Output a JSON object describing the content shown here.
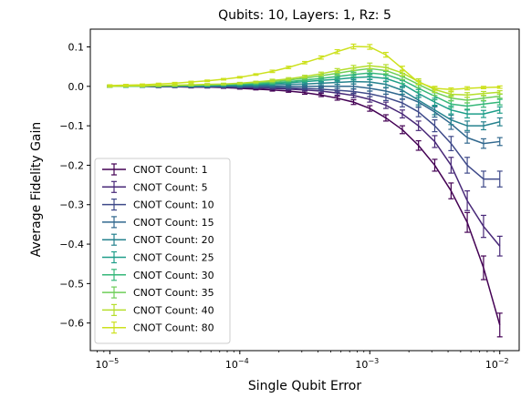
{
  "chart_data": {
    "type": "line",
    "title": "Qubits: 10, Layers: 1, Rz: 5",
    "xlabel": "Single Qubit Error",
    "ylabel": "Average Fidelity Gain",
    "xscale": "log",
    "xlim": [
      7.08e-06,
      0.0141
    ],
    "ylim": [
      -0.67,
      0.145
    ],
    "xticks": [
      {
        "value": 1e-05,
        "base": "10",
        "exp": "−5"
      },
      {
        "value": 0.0001,
        "base": "10",
        "exp": "−4"
      },
      {
        "value": 0.001,
        "base": "10",
        "exp": "−3"
      },
      {
        "value": 0.01,
        "base": "10",
        "exp": "−2"
      }
    ],
    "yticks": [
      {
        "value": 0.1,
        "label": "0.1"
      },
      {
        "value": 0.0,
        "label": "0.0"
      },
      {
        "value": -0.1,
        "label": "−0.1"
      },
      {
        "value": -0.2,
        "label": "−0.2"
      },
      {
        "value": -0.3,
        "label": "−0.3"
      },
      {
        "value": -0.4,
        "label": "−0.4"
      },
      {
        "value": -0.5,
        "label": "−0.5"
      },
      {
        "value": -0.6,
        "label": "−0.6"
      }
    ],
    "grid": false,
    "legend_position": "lower-left",
    "x": [
      1e-05,
      1.33e-05,
      1.78e-05,
      2.37e-05,
      3.16e-05,
      4.22e-05,
      5.62e-05,
      7.5e-05,
      0.0001,
      0.000133,
      0.000178,
      0.000237,
      0.000316,
      0.000422,
      0.000562,
      0.00075,
      0.001,
      0.00133,
      0.00178,
      0.00237,
      0.00316,
      0.00422,
      0.00562,
      0.0075,
      0.01
    ],
    "series": [
      {
        "name": "CNOT Count: 1",
        "color": "#440154",
        "values": [
          0,
          0,
          0,
          -0.001,
          -0.001,
          -0.002,
          -0.002,
          -0.003,
          -0.005,
          -0.007,
          -0.009,
          -0.012,
          -0.016,
          -0.022,
          -0.03,
          -0.04,
          -0.056,
          -0.08,
          -0.11,
          -0.15,
          -0.2,
          -0.265,
          -0.345,
          -0.46,
          -0.605
        ],
        "errors": [
          0.002,
          0.002,
          0.002,
          0.002,
          0.002,
          0.002,
          0.002,
          0.002,
          0.002,
          0.002,
          0.003,
          0.003,
          0.004,
          0.004,
          0.005,
          0.006,
          0.007,
          0.008,
          0.01,
          0.012,
          0.015,
          0.02,
          0.025,
          0.03,
          0.03
        ]
      },
      {
        "name": "CNOT Count: 5",
        "color": "#482878",
        "values": [
          0,
          0,
          0,
          -0.001,
          -0.001,
          -0.001,
          -0.002,
          -0.002,
          -0.003,
          -0.004,
          -0.005,
          -0.007,
          -0.009,
          -0.012,
          -0.017,
          -0.023,
          -0.033,
          -0.048,
          -0.07,
          -0.1,
          -0.14,
          -0.2,
          -0.29,
          -0.355,
          -0.405
        ],
        "errors": [
          0.002,
          0.002,
          0.002,
          0.002,
          0.002,
          0.002,
          0.002,
          0.002,
          0.002,
          0.002,
          0.003,
          0.003,
          0.003,
          0.004,
          0.005,
          0.006,
          0.007,
          0.008,
          0.01,
          0.012,
          0.015,
          0.02,
          0.025,
          0.028,
          0.025
        ]
      },
      {
        "name": "CNOT Count: 10",
        "color": "#3e4989",
        "values": [
          0,
          0,
          0,
          0,
          0,
          -0.001,
          -0.001,
          -0.001,
          -0.002,
          -0.002,
          -0.003,
          -0.004,
          -0.005,
          -0.007,
          -0.01,
          -0.013,
          -0.019,
          -0.028,
          -0.042,
          -0.065,
          -0.1,
          -0.145,
          -0.2,
          -0.235,
          -0.235
        ],
        "errors": [
          0.002,
          0.002,
          0.002,
          0.002,
          0.002,
          0.002,
          0.002,
          0.002,
          0.002,
          0.002,
          0.002,
          0.003,
          0.003,
          0.004,
          0.005,
          0.006,
          0.007,
          0.008,
          0.01,
          0.012,
          0.015,
          0.018,
          0.02,
          0.02,
          0.02
        ]
      },
      {
        "name": "CNOT Count: 15",
        "color": "#31688e",
        "values": [
          0,
          0,
          0,
          0,
          0,
          0,
          0,
          0,
          0,
          0,
          0,
          0,
          0,
          0,
          0,
          0,
          -0.005,
          -0.012,
          -0.023,
          -0.04,
          -0.065,
          -0.095,
          -0.13,
          -0.145,
          -0.14
        ],
        "errors": [
          0.002,
          0.002,
          0.002,
          0.002,
          0.002,
          0.002,
          0.002,
          0.002,
          0.002,
          0.002,
          0.002,
          0.003,
          0.003,
          0.004,
          0.005,
          0.006,
          0.007,
          0.008,
          0.01,
          0.012,
          0.013,
          0.014,
          0.014,
          0.012,
          0.01
        ]
      },
      {
        "name": "CNOT Count: 20",
        "color": "#26828e",
        "values": [
          0,
          0,
          0,
          0,
          0.001,
          0.001,
          0.001,
          0.002,
          0.002,
          0.003,
          0.004,
          0.005,
          0.006,
          0.008,
          0.01,
          0.012,
          0.011,
          0.005,
          -0.01,
          -0.035,
          -0.06,
          -0.085,
          -0.1,
          -0.1,
          -0.09
        ],
        "errors": [
          0.002,
          0.002,
          0.002,
          0.002,
          0.002,
          0.002,
          0.002,
          0.002,
          0.002,
          0.002,
          0.002,
          0.003,
          0.003,
          0.004,
          0.005,
          0.006,
          0.007,
          0.008,
          0.01,
          0.012,
          0.012,
          0.012,
          0.012,
          0.01,
          0.01
        ]
      },
      {
        "name": "CNOT Count: 25",
        "color": "#1f9e89",
        "values": [
          0,
          0,
          0,
          0.001,
          0.001,
          0.002,
          0.002,
          0.003,
          0.004,
          0.005,
          0.007,
          0.009,
          0.012,
          0.015,
          0.018,
          0.022,
          0.024,
          0.02,
          0.006,
          -0.018,
          -0.04,
          -0.06,
          -0.07,
          -0.07,
          -0.06
        ],
        "errors": [
          0.002,
          0.002,
          0.002,
          0.002,
          0.002,
          0.002,
          0.002,
          0.002,
          0.002,
          0.002,
          0.003,
          0.003,
          0.003,
          0.004,
          0.005,
          0.006,
          0.007,
          0.008,
          0.009,
          0.01,
          0.01,
          0.01,
          0.01,
          0.009,
          0.008
        ]
      },
      {
        "name": "CNOT Count: 30",
        "color": "#35b779",
        "values": [
          0,
          0,
          0.001,
          0.001,
          0.002,
          0.002,
          0.003,
          0.004,
          0.005,
          0.007,
          0.009,
          0.012,
          0.016,
          0.02,
          0.025,
          0.03,
          0.034,
          0.03,
          0.016,
          -0.005,
          -0.025,
          -0.045,
          -0.05,
          -0.045,
          -0.04
        ],
        "errors": [
          0.002,
          0.002,
          0.002,
          0.002,
          0.002,
          0.002,
          0.002,
          0.002,
          0.002,
          0.002,
          0.003,
          0.003,
          0.003,
          0.004,
          0.005,
          0.006,
          0.007,
          0.008,
          0.009,
          0.009,
          0.009,
          0.009,
          0.008,
          0.008,
          0.007
        ]
      },
      {
        "name": "CNOT Count: 35",
        "color": "#6ece58",
        "values": [
          0,
          0.001,
          0.001,
          0.002,
          0.002,
          0.003,
          0.004,
          0.005,
          0.007,
          0.009,
          0.012,
          0.016,
          0.021,
          0.027,
          0.033,
          0.04,
          0.045,
          0.04,
          0.025,
          0.005,
          -0.015,
          -0.03,
          -0.035,
          -0.03,
          -0.025
        ],
        "errors": [
          0.002,
          0.002,
          0.002,
          0.002,
          0.002,
          0.002,
          0.002,
          0.002,
          0.002,
          0.002,
          0.003,
          0.003,
          0.003,
          0.004,
          0.005,
          0.006,
          0.007,
          0.008,
          0.008,
          0.008,
          0.008,
          0.007,
          0.007,
          0.006,
          0.005
        ]
      },
      {
        "name": "CNOT Count: 40",
        "color": "#b5de2b",
        "values": [
          0,
          0.001,
          0.001,
          0.002,
          0.003,
          0.004,
          0.005,
          0.006,
          0.008,
          0.011,
          0.015,
          0.019,
          0.025,
          0.032,
          0.04,
          0.047,
          0.052,
          0.048,
          0.034,
          0.012,
          -0.008,
          -0.02,
          -0.022,
          -0.018,
          -0.015
        ],
        "errors": [
          0.002,
          0.002,
          0.002,
          0.002,
          0.002,
          0.002,
          0.002,
          0.002,
          0.002,
          0.002,
          0.003,
          0.003,
          0.003,
          0.004,
          0.005,
          0.006,
          0.007,
          0.007,
          0.007,
          0.007,
          0.007,
          0.006,
          0.006,
          0.005,
          0.004
        ]
      },
      {
        "name": "CNOT Count: 80",
        "color": "#cde11d",
        "values": [
          0.002,
          0.003,
          0.004,
          0.006,
          0.008,
          0.011,
          0.014,
          0.018,
          0.023,
          0.03,
          0.038,
          0.048,
          0.06,
          0.073,
          0.088,
          0.101,
          0.1,
          0.08,
          0.045,
          0.01,
          -0.005,
          -0.008,
          -0.005,
          -0.003,
          -0.002
        ],
        "errors": [
          0.002,
          0.002,
          0.002,
          0.002,
          0.002,
          0.002,
          0.002,
          0.002,
          0.002,
          0.002,
          0.003,
          0.003,
          0.003,
          0.004,
          0.005,
          0.006,
          0.006,
          0.006,
          0.006,
          0.005,
          0.005,
          0.004,
          0.004,
          0.003,
          0.003
        ]
      }
    ]
  }
}
